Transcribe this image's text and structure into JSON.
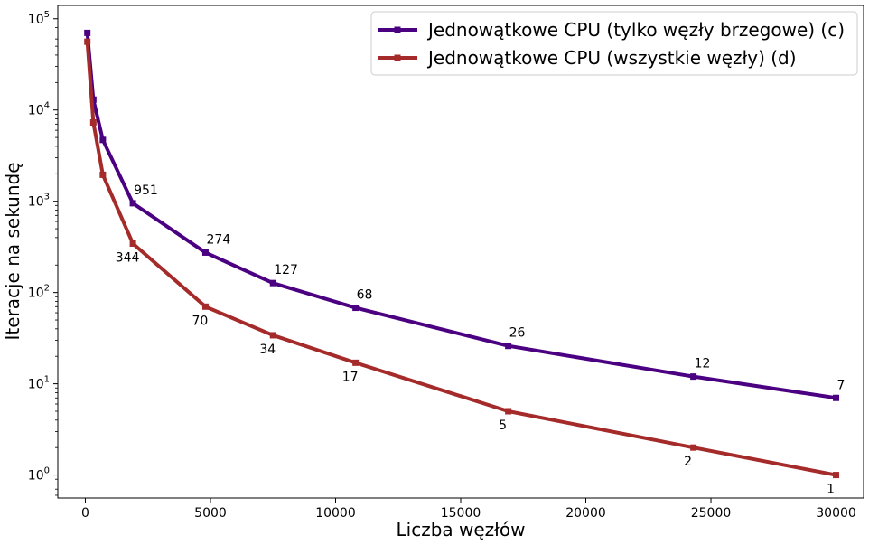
{
  "chart_data": {
    "type": "line",
    "xlabel": "Liczba węzłów",
    "ylabel": "Iteracje na sekundę",
    "xlim": [
      -1100,
      31100
    ],
    "ylim": [
      0.56,
      140000
    ],
    "y_scale": "log",
    "x_ticks": [
      0,
      5000,
      10000,
      15000,
      20000,
      25000,
      30000
    ],
    "x_tick_labels": [
      "0",
      "5000",
      "10000",
      "15000",
      "20000",
      "25000",
      "30000"
    ],
    "y_ticks": [
      1,
      10,
      100,
      1000,
      10000,
      100000
    ],
    "y_tick_labels": [
      {
        "base": "10",
        "exp": "0"
      },
      {
        "base": "10",
        "exp": "1"
      },
      {
        "base": "10",
        "exp": "2"
      },
      {
        "base": "10",
        "exp": "3"
      },
      {
        "base": "10",
        "exp": "4"
      },
      {
        "base": "10",
        "exp": "5"
      }
    ],
    "grid": false,
    "legend_position": "top-right",
    "series": [
      {
        "name": "Jednowątkowe CPU (tylko węzły brzegowe) (c)",
        "color": "#4b0082",
        "x": [
          80,
          320,
          700,
          1900,
          4800,
          7500,
          10800,
          16900,
          24300,
          30000
        ],
        "y": [
          70000,
          13000,
          4700,
          951,
          274,
          127,
          68,
          26,
          12,
          7
        ],
        "labels": [
          "",
          "",
          "",
          "951",
          "274",
          "127",
          "68",
          "26",
          "12",
          "7"
        ]
      },
      {
        "name": "Jednowątkowe CPU (wszystkie węzły) (d)",
        "color": "#a52a2a",
        "x": [
          80,
          320,
          700,
          1900,
          4800,
          7500,
          10800,
          16900,
          24300,
          30000
        ],
        "y": [
          56000,
          7300,
          1950,
          344,
          70,
          34,
          17,
          5,
          2,
          1
        ],
        "labels": [
          "",
          "",
          "",
          "344",
          "70",
          "34",
          "17",
          "5",
          "2",
          "1"
        ]
      }
    ]
  }
}
